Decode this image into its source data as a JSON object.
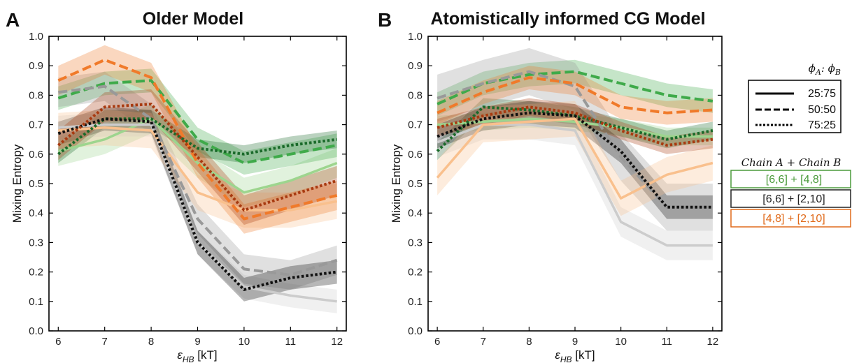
{
  "figure": {
    "panels": [
      {
        "letter": "A",
        "title": "Older Model"
      },
      {
        "letter": "B",
        "title": "Atomistically informed CG Model"
      }
    ],
    "x_axis_label": "ε",
    "x_axis_label_sub": "HB",
    "x_axis_label_unit": " [kT]",
    "y_axis_label": "Mixing Entropy"
  },
  "legend": {
    "ratio_title_a": "ϕ",
    "ratio_title_a_sub": "A",
    "ratio_title_sep": ": ",
    "ratio_title_b": "ϕ",
    "ratio_title_b_sub": "B",
    "ratio_entries": [
      {
        "label": "25:75",
        "style": "solid"
      },
      {
        "label": "50:50",
        "style": "dashed"
      },
      {
        "label": "75:25",
        "style": "dotted"
      }
    ],
    "chain_title": "Chain A  + Chain B",
    "chain_entries": [
      {
        "label": "[6,6] + [4,8]",
        "color": "#4a9a3a"
      },
      {
        "label": "[6,6] + [2,10]",
        "color": "#222222"
      },
      {
        "label": "[4,8] + [2,10]",
        "color": "#e06a1a"
      }
    ]
  },
  "colors": {
    "green_solid": "#9dd58e",
    "green_dashed": "#3faa4a",
    "green_dotted": "#1a6a2a",
    "black_solid": "#cccccc",
    "black_dashed": "#999999",
    "black_dotted": "#111111",
    "orange_solid": "#f9c08d",
    "orange_dashed": "#f07a2a",
    "orange_dotted": "#a83a10"
  },
  "chart_data": [
    {
      "type": "line",
      "title": "Older Model",
      "xlabel": "ε_HB [kT]",
      "ylabel": "Mixing Entropy",
      "x": [
        6,
        7,
        8,
        9,
        10,
        11,
        12
      ],
      "xlim": [
        5.8,
        12.2
      ],
      "ylim": [
        0.0,
        1.0
      ],
      "xticks": [
        "6",
        "7",
        "8",
        "9",
        "10",
        "11",
        "12"
      ],
      "yticks": [
        "0.0",
        "0.1",
        "0.2",
        "0.3",
        "0.4",
        "0.5",
        "0.6",
        "0.7",
        "0.8",
        "0.9",
        "1.0"
      ],
      "series": [
        {
          "chain": "[6,6] + [4,8]",
          "ratio": "25:75",
          "color": "#9dd58e",
          "style": "solid",
          "width": 3.5,
          "values": [
            0.61,
            0.65,
            0.72,
            0.57,
            0.47,
            0.51,
            0.57
          ],
          "band": 0.05
        },
        {
          "chain": "[6,6] + [4,8]",
          "ratio": "50:50",
          "color": "#3faa4a",
          "style": "dashed",
          "width": 4,
          "values": [
            0.79,
            0.84,
            0.85,
            0.65,
            0.57,
            0.6,
            0.63
          ],
          "band": 0.04
        },
        {
          "chain": "[6,6] + [4,8]",
          "ratio": "75:25",
          "color": "#1a6a2a",
          "style": "dotted",
          "width": 4,
          "values": [
            0.6,
            0.72,
            0.72,
            0.62,
            0.6,
            0.63,
            0.65
          ],
          "band": 0.03
        },
        {
          "chain": "[6,6] + [2,10]",
          "ratio": "25:75",
          "color": "#cccccc",
          "style": "solid",
          "width": 3.5,
          "values": [
            0.69,
            0.7,
            0.7,
            0.3,
            0.15,
            0.12,
            0.1
          ],
          "band": 0.04
        },
        {
          "chain": "[6,6] + [2,10]",
          "ratio": "50:50",
          "color": "#999999",
          "style": "dashed",
          "width": 4,
          "values": [
            0.81,
            0.83,
            0.72,
            0.38,
            0.21,
            0.19,
            0.24
          ],
          "band": 0.05
        },
        {
          "chain": "[6,6] + [2,10]",
          "ratio": "75:25",
          "color": "#111111",
          "style": "dotted",
          "width": 4,
          "values": [
            0.67,
            0.72,
            0.71,
            0.3,
            0.14,
            0.18,
            0.2
          ],
          "band": 0.04
        },
        {
          "chain": "[4,8] + [2,10]",
          "ratio": "25:75",
          "color": "#f9c08d",
          "style": "solid",
          "width": 3.5,
          "values": [
            0.68,
            0.69,
            0.68,
            0.47,
            0.41,
            0.41,
            0.44
          ],
          "band": 0.06
        },
        {
          "chain": "[4,8] + [2,10]",
          "ratio": "50:50",
          "color": "#f07a2a",
          "style": "dashed",
          "width": 4,
          "values": [
            0.85,
            0.92,
            0.86,
            0.57,
            0.38,
            0.42,
            0.46
          ],
          "band": 0.05
        },
        {
          "chain": "[4,8] + [2,10]",
          "ratio": "75:25",
          "color": "#a83a10",
          "style": "dotted",
          "width": 4,
          "values": [
            0.63,
            0.76,
            0.77,
            0.59,
            0.41,
            0.46,
            0.51
          ],
          "band": 0.05
        }
      ]
    },
    {
      "type": "line",
      "title": "Atomistically informed CG Model",
      "xlabel": "ε_HB [kT]",
      "ylabel": "Mixing Entropy",
      "x": [
        6,
        7,
        8,
        9,
        10,
        11,
        12
      ],
      "xlim": [
        5.8,
        12.2
      ],
      "ylim": [
        0.0,
        1.0
      ],
      "xticks": [
        "6",
        "7",
        "8",
        "9",
        "10",
        "11",
        "12"
      ],
      "yticks": [
        "0.0",
        "0.1",
        "0.2",
        "0.3",
        "0.4",
        "0.5",
        "0.6",
        "0.7",
        "0.8",
        "0.9",
        "1.0"
      ],
      "series": [
        {
          "chain": "[6,6] + [4,8]",
          "ratio": "25:75",
          "color": "#9dd58e",
          "style": "solid",
          "width": 3.5,
          "values": [
            0.7,
            0.71,
            0.72,
            0.71,
            0.69,
            0.66,
            0.66
          ],
          "band": 0.03
        },
        {
          "chain": "[6,6] + [4,8]",
          "ratio": "50:50",
          "color": "#3faa4a",
          "style": "dashed",
          "width": 4,
          "values": [
            0.77,
            0.84,
            0.87,
            0.88,
            0.84,
            0.8,
            0.78
          ],
          "band": 0.04
        },
        {
          "chain": "[6,6] + [4,8]",
          "ratio": "75:25",
          "color": "#1a6a2a",
          "style": "dotted",
          "width": 4,
          "values": [
            0.61,
            0.76,
            0.75,
            0.73,
            0.69,
            0.65,
            0.68
          ],
          "band": 0.03
        },
        {
          "chain": "[6,6] + [2,10]",
          "ratio": "25:75",
          "color": "#cccccc",
          "style": "solid",
          "width": 3.5,
          "values": [
            0.64,
            0.7,
            0.7,
            0.68,
            0.37,
            0.29,
            0.29
          ],
          "band": 0.05
        },
        {
          "chain": "[6,6] + [2,10]",
          "ratio": "50:50",
          "color": "#999999",
          "style": "dashed",
          "width": 4,
          "values": [
            0.79,
            0.84,
            0.88,
            0.83,
            0.59,
            0.42,
            0.42
          ],
          "band": 0.08
        },
        {
          "chain": "[6,6] + [2,10]",
          "ratio": "75:25",
          "color": "#111111",
          "style": "dotted",
          "width": 4,
          "values": [
            0.66,
            0.72,
            0.74,
            0.73,
            0.61,
            0.42,
            0.42
          ],
          "band": 0.04
        },
        {
          "chain": "[4,8] + [2,10]",
          "ratio": "25:75",
          "color": "#f9c08d",
          "style": "solid",
          "width": 3.5,
          "values": [
            0.52,
            0.7,
            0.71,
            0.72,
            0.45,
            0.53,
            0.57
          ],
          "band": 0.06
        },
        {
          "chain": "[4,8] + [2,10]",
          "ratio": "50:50",
          "color": "#f07a2a",
          "style": "dashed",
          "width": 4,
          "values": [
            0.74,
            0.81,
            0.86,
            0.84,
            0.76,
            0.74,
            0.75
          ],
          "band": 0.04
        },
        {
          "chain": "[4,8] + [2,10]",
          "ratio": "75:25",
          "color": "#a83a10",
          "style": "dotted",
          "width": 4,
          "values": [
            0.69,
            0.73,
            0.76,
            0.74,
            0.68,
            0.63,
            0.65
          ],
          "band": 0.03
        }
      ]
    }
  ]
}
